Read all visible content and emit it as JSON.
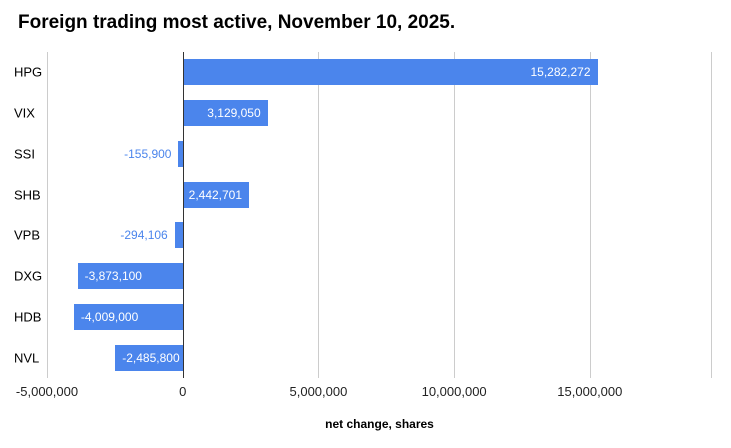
{
  "title": "Foreign trading most active, November 10, 2025.",
  "chart_data": {
    "type": "bar",
    "orientation": "horizontal",
    "title": "Foreign trading most active, November 10, 2025.",
    "categories": [
      "HPG",
      "VIX",
      "SSI",
      "SHB",
      "VPB",
      "DXG",
      "HDB",
      "NVL"
    ],
    "values": [
      15282272,
      3129050,
      -155900,
      2442701,
      -294106,
      -3873100,
      -4009000,
      -2485800
    ],
    "value_labels": [
      "15,282,272",
      "3,129,050",
      "-155,900",
      "2,442,701",
      "-294,106",
      "-3,873,100",
      "-4,009,000",
      "-2,485,800"
    ],
    "xlabel": "net change, shares",
    "ylabel": "",
    "x_ticks": [
      -5000000,
      0,
      5000000,
      10000000,
      15000000
    ],
    "x_tick_labels": [
      "-5,000,000",
      "0",
      "5,000,000",
      "10,000,000",
      "15,000,000"
    ],
    "xlim": [
      -5000000,
      19500000
    ],
    "grid": true,
    "legend": "none",
    "bar_color": "#4b85ec",
    "label_inside_color": "#ffffff",
    "label_outside_color": "#4b85ec",
    "grid_color": "#cccccc",
    "zero_line_color": "#333333"
  }
}
